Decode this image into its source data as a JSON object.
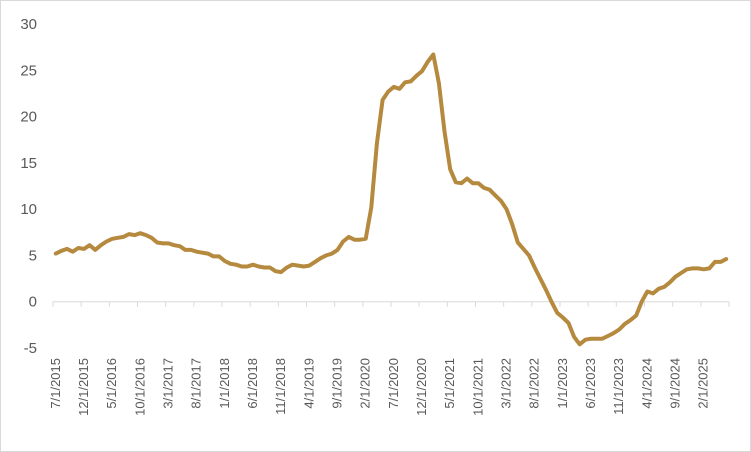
{
  "chart_data": {
    "type": "line",
    "title": "",
    "xlabel": "",
    "ylabel": "",
    "ylim": [
      -5,
      30
    ],
    "y_ticks": [
      -5,
      0,
      5,
      10,
      15,
      20,
      25,
      30
    ],
    "x_tick_labels": [
      "7/1/2015",
      "12/1/2015",
      "5/1/2016",
      "10/1/2016",
      "3/1/2017",
      "8/1/2017",
      "1/1/2018",
      "6/1/2018",
      "11/1/2018",
      "4/1/2019",
      "9/1/2019",
      "2/1/2020",
      "7/1/2020",
      "12/1/2020",
      "5/1/2021",
      "10/1/2021",
      "3/1/2022",
      "8/1/2022",
      "1/1/2023",
      "6/1/2023",
      "11/1/2023",
      "4/1/2024",
      "9/1/2024",
      "2/1/2025"
    ],
    "grid": false,
    "legend": "none",
    "line_color": "#b5893e",
    "series": [
      {
        "name": "",
        "x": [
          "2015-07",
          "2015-08",
          "2015-09",
          "2015-10",
          "2015-11",
          "2015-12",
          "2016-01",
          "2016-02",
          "2016-03",
          "2016-04",
          "2016-05",
          "2016-06",
          "2016-07",
          "2016-08",
          "2016-09",
          "2016-10",
          "2016-11",
          "2016-12",
          "2017-01",
          "2017-02",
          "2017-03",
          "2017-04",
          "2017-05",
          "2017-06",
          "2017-07",
          "2017-08",
          "2017-09",
          "2017-10",
          "2017-11",
          "2017-12",
          "2018-01",
          "2018-02",
          "2018-03",
          "2018-04",
          "2018-05",
          "2018-06",
          "2018-07",
          "2018-08",
          "2018-09",
          "2018-10",
          "2018-11",
          "2018-12",
          "2019-01",
          "2019-02",
          "2019-03",
          "2019-04",
          "2019-05",
          "2019-06",
          "2019-07",
          "2019-08",
          "2019-09",
          "2019-10",
          "2019-11",
          "2019-12",
          "2020-01",
          "2020-02",
          "2020-03",
          "2020-04",
          "2020-05",
          "2020-06",
          "2020-07",
          "2020-08",
          "2020-09",
          "2020-10",
          "2020-11",
          "2020-12",
          "2021-01",
          "2021-02",
          "2021-03",
          "2021-04",
          "2021-05",
          "2021-06",
          "2021-07",
          "2021-08",
          "2021-09",
          "2021-10",
          "2021-11",
          "2021-12",
          "2022-01",
          "2022-02",
          "2022-03",
          "2022-04",
          "2022-05",
          "2022-06",
          "2022-07",
          "2022-08",
          "2022-09",
          "2022-10",
          "2022-11",
          "2022-12",
          "2023-01",
          "2023-02",
          "2023-03",
          "2023-04",
          "2023-05",
          "2023-06",
          "2023-07",
          "2023-08",
          "2023-09",
          "2023-10",
          "2023-11",
          "2023-12",
          "2024-01",
          "2024-02",
          "2024-03",
          "2024-04",
          "2024-05",
          "2024-06",
          "2024-07",
          "2024-08",
          "2024-09",
          "2024-10",
          "2024-11",
          "2024-12",
          "2025-01",
          "2025-02",
          "2025-03",
          "2025-04",
          "2025-05",
          "2025-06"
        ],
        "values": [
          5.2,
          5.5,
          5.7,
          5.4,
          5.8,
          5.7,
          6.1,
          5.6,
          6.1,
          6.5,
          6.8,
          6.9,
          7.0,
          7.3,
          7.2,
          7.4,
          7.2,
          6.9,
          6.4,
          6.3,
          6.3,
          6.1,
          6.0,
          5.6,
          5.6,
          5.4,
          5.3,
          5.2,
          4.9,
          4.9,
          4.4,
          4.1,
          4.0,
          3.8,
          3.8,
          4.0,
          3.8,
          3.7,
          3.7,
          3.3,
          3.2,
          3.7,
          4.0,
          3.9,
          3.8,
          3.9,
          4.3,
          4.7,
          5.0,
          5.2,
          5.6,
          6.5,
          7.0,
          6.7,
          6.7,
          6.8,
          10.2,
          17.1,
          21.8,
          22.7,
          23.2,
          23.0,
          23.7,
          23.8,
          24.4,
          24.9,
          25.9,
          26.7,
          23.6,
          18.4,
          14.3,
          12.9,
          12.8,
          13.3,
          12.8,
          12.8,
          12.3,
          12.1,
          11.5,
          10.9,
          10.0,
          8.4,
          6.4,
          5.7,
          5.0,
          3.7,
          2.5,
          1.3,
          0.0,
          -1.2,
          -1.7,
          -2.3,
          -3.8,
          -4.6,
          -4.1,
          -4.0,
          -4.0,
          -4.0,
          -3.7,
          -3.4,
          -3.0,
          -2.4,
          -2.0,
          -1.5,
          0.0,
          1.1,
          0.9,
          1.4,
          1.6,
          2.1,
          2.7,
          3.1,
          3.5,
          3.6,
          3.6,
          3.5,
          3.6,
          4.3,
          4.3,
          4.6
        ]
      }
    ]
  }
}
